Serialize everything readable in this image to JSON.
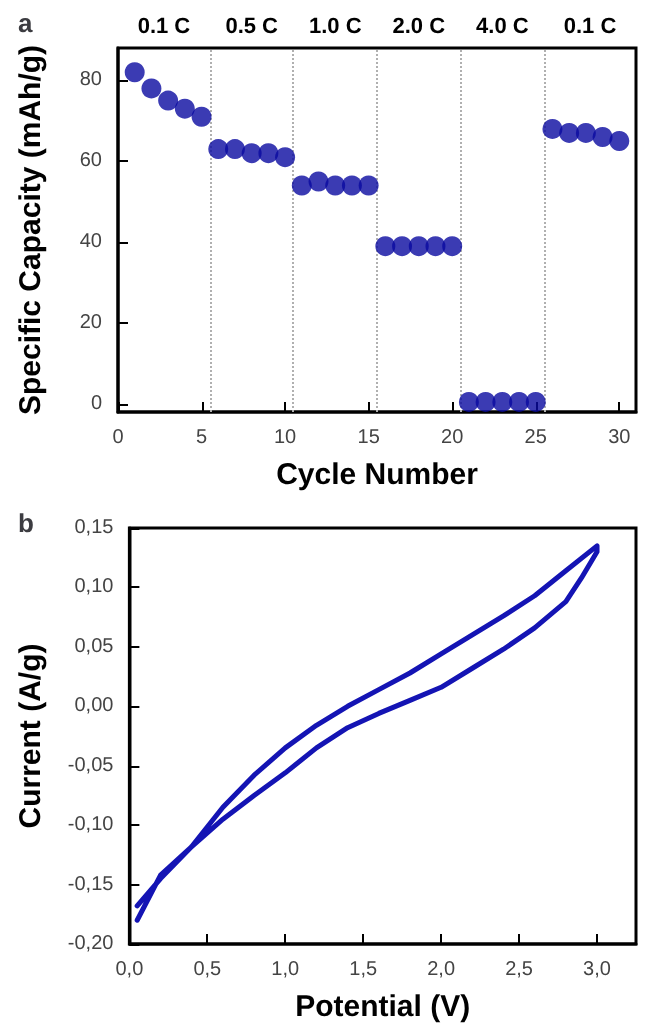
{
  "chart_data": [
    {
      "type": "scatter",
      "title": "a",
      "xlabel": "Cycle Number",
      "ylabel": "Specific Capacity (mAh/g)",
      "x": [
        1,
        2,
        3,
        4,
        5,
        6,
        7,
        8,
        9,
        10,
        11,
        12,
        13,
        14,
        15,
        16,
        17,
        18,
        19,
        20,
        21,
        22,
        23,
        24,
        25,
        26,
        27,
        28,
        29,
        30
      ],
      "series": [
        {
          "color": "#0a0aa0",
          "values": [
            82,
            78,
            75,
            73,
            71,
            63,
            63,
            62,
            62,
            61,
            54,
            55,
            54,
            54,
            54,
            39,
            39,
            39,
            39,
            39,
            0.5,
            0.5,
            0.5,
            0.5,
            0.5,
            68,
            67,
            67,
            66,
            65
          ]
        }
      ],
      "xlim": [
        0,
        31
      ],
      "ylim": [
        -2,
        88
      ],
      "xticks": [
        0,
        5,
        10,
        15,
        20,
        25,
        30
      ],
      "yticks": [
        0,
        20,
        40,
        60,
        80
      ],
      "marker": "circle",
      "grid": false,
      "ref_lines": [
        {
          "axis": "x",
          "value": 5.5,
          "line_style": "dotted",
          "color": "#b0b0b0"
        },
        {
          "axis": "x",
          "value": 10.5,
          "line_style": "dotted",
          "color": "#b0b0b0"
        },
        {
          "axis": "x",
          "value": 15.5,
          "line_style": "dotted",
          "color": "#b0b0b0"
        },
        {
          "axis": "x",
          "value": 20.5,
          "line_style": "dotted",
          "color": "#b0b0b0"
        },
        {
          "axis": "x",
          "value": 25.5,
          "line_style": "dotted",
          "color": "#b0b0b0"
        }
      ],
      "annotations": [
        "0.1 C",
        "0.5 C",
        "1.0 C",
        "2.0 C",
        "4.0 C",
        "0.1 C"
      ]
    },
    {
      "type": "line",
      "title": "b",
      "xlabel": "Potential (V)",
      "ylabel": "Current (A/g)",
      "series": [
        {
          "color": "#1414b4",
          "x": [
            0.05,
            0.2,
            0.4,
            0.6,
            0.8,
            1.0,
            1.2,
            1.4,
            1.6,
            1.8,
            2.0,
            2.2,
            2.4,
            2.6,
            2.8,
            3.0,
            3.0,
            2.9,
            2.8,
            2.6,
            2.4,
            2.2,
            2.0,
            1.8,
            1.6,
            1.4,
            1.2,
            1.0,
            0.8,
            0.6,
            0.4,
            0.2,
            0.05
          ],
          "values": [
            -0.168,
            -0.145,
            -0.118,
            -0.085,
            -0.058,
            -0.035,
            -0.016,
            0.0,
            0.014,
            0.028,
            0.044,
            0.06,
            0.076,
            0.093,
            0.114,
            0.135,
            0.13,
            0.108,
            0.088,
            0.066,
            0.048,
            0.032,
            0.016,
            0.005,
            -0.006,
            -0.018,
            -0.035,
            -0.056,
            -0.075,
            -0.095,
            -0.118,
            -0.142,
            -0.18
          ]
        }
      ],
      "xlim": [
        0,
        3.25
      ],
      "ylim": [
        -0.2,
        0.15
      ],
      "xticks": [
        {
          "value": 0,
          "label": "0,0"
        },
        {
          "value": 0.5,
          "label": "0,5"
        },
        {
          "value": 1,
          "label": "1,0"
        },
        {
          "value": 1.5,
          "label": "1,5"
        },
        {
          "value": 2,
          "label": "2,0"
        },
        {
          "value": 2.5,
          "label": "2,5"
        },
        {
          "value": 3,
          "label": "3,0"
        }
      ],
      "yticks": [
        {
          "value": -0.2,
          "label": "-0,20"
        },
        {
          "value": -0.15,
          "label": "-0,15"
        },
        {
          "value": -0.1,
          "label": "-0,10"
        },
        {
          "value": -0.05,
          "label": "-0,05"
        },
        {
          "value": 0,
          "label": "0,00"
        },
        {
          "value": 0.05,
          "label": "0,05"
        },
        {
          "value": 0.1,
          "label": "0,10"
        },
        {
          "value": 0.15,
          "label": "0,15"
        }
      ],
      "marker": "none",
      "line_style": "solid",
      "grid": false
    }
  ]
}
